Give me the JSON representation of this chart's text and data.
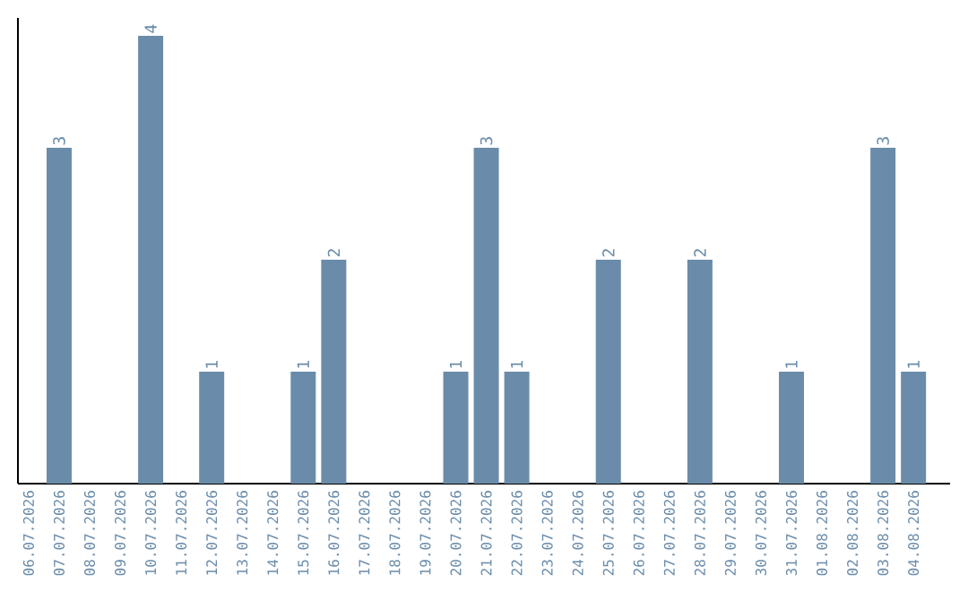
{
  "chart_data": {
    "type": "bar",
    "categories": [
      "06.07.2026",
      "07.07.2026",
      "08.07.2026",
      "09.07.2026",
      "10.07.2026",
      "11.07.2026",
      "12.07.2026",
      "13.07.2026",
      "14.07.2026",
      "15.07.2026",
      "16.07.2026",
      "17.07.2026",
      "18.07.2026",
      "19.07.2026",
      "20.07.2026",
      "21.07.2026",
      "22.07.2026",
      "23.07.2026",
      "24.07.2026",
      "25.07.2026",
      "26.07.2026",
      "27.07.2026",
      "28.07.2026",
      "29.07.2026",
      "30.07.2026",
      "31.07.2026",
      "01.08.2026",
      "02.08.2026",
      "03.08.2026",
      "04.08.2026"
    ],
    "values": [
      0,
      3,
      0,
      0,
      4,
      0,
      1,
      0,
      0,
      1,
      2,
      0,
      0,
      0,
      1,
      3,
      1,
      0,
      0,
      2,
      0,
      0,
      2,
      0,
      0,
      1,
      0,
      0,
      3,
      1
    ],
    "value_labels": [
      null,
      "3",
      null,
      null,
      "4",
      null,
      "1",
      null,
      null,
      "1",
      "2",
      null,
      null,
      null,
      "1",
      "3",
      "1",
      null,
      null,
      "2",
      null,
      null,
      "2",
      null,
      null,
      "1",
      null,
      null,
      "3",
      "1"
    ],
    "color": "#6a8caa"
  }
}
